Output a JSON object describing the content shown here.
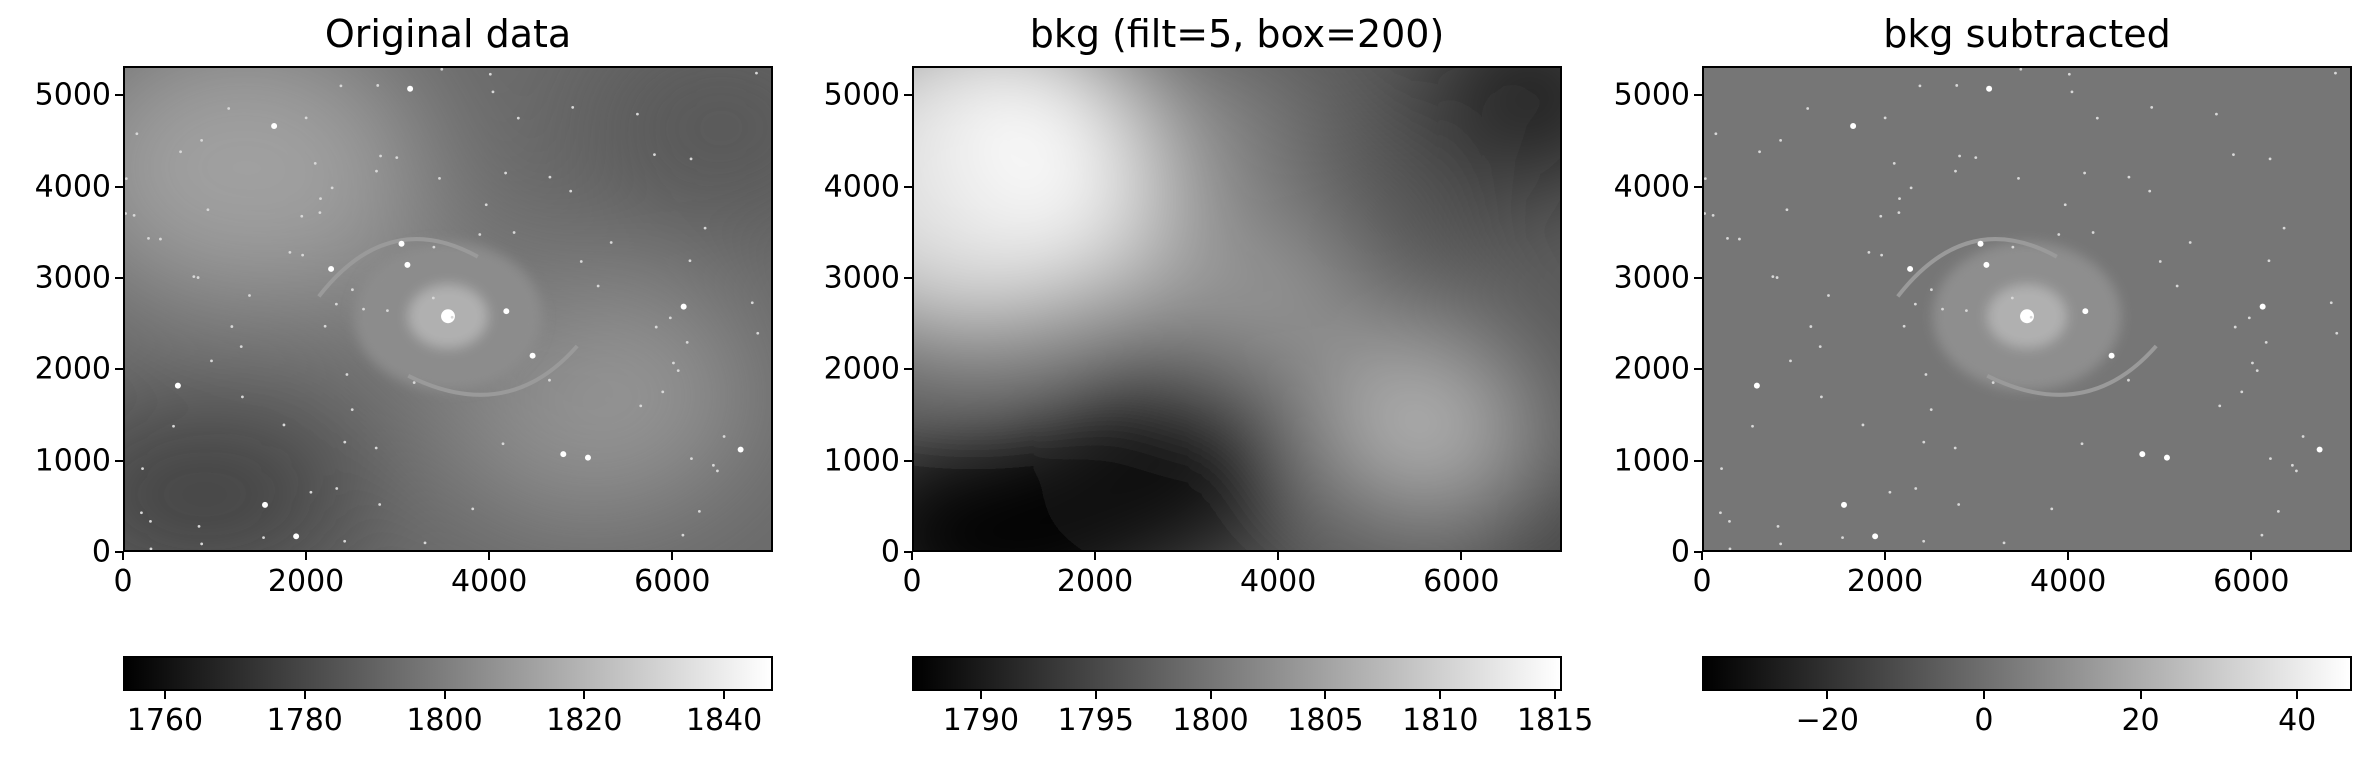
{
  "chart_data": [
    {
      "type": "heatmap",
      "title": "Original data",
      "xlim": [
        0,
        7100
      ],
      "ylim": [
        0,
        5320
      ],
      "x_ticks": [
        "0",
        "2000",
        "4000",
        "6000"
      ],
      "x_tick_values": [
        0,
        2000,
        4000,
        6000
      ],
      "y_ticks": [
        "0",
        "1000",
        "2000",
        "3000",
        "4000",
        "5000"
      ],
      "y_tick_values": [
        0,
        1000,
        2000,
        3000,
        4000,
        5000
      ],
      "colormap": "gray",
      "colorbar": {
        "range": [
          1754,
          1847
        ],
        "ticks": [
          "1760",
          "1780",
          "1800",
          "1820",
          "1840"
        ],
        "tick_values": [
          1760,
          1780,
          1800,
          1820,
          1840
        ]
      }
    },
    {
      "type": "heatmap",
      "title": "bkg (filt=5, box=200)",
      "xlim": [
        0,
        7100
      ],
      "ylim": [
        0,
        5320
      ],
      "x_ticks": [
        "0",
        "2000",
        "4000",
        "6000"
      ],
      "x_tick_values": [
        0,
        2000,
        4000,
        6000
      ],
      "y_ticks": [
        "0",
        "1000",
        "2000",
        "3000",
        "4000",
        "5000"
      ],
      "y_tick_values": [
        0,
        1000,
        2000,
        3000,
        4000,
        5000
      ],
      "colormap": "gray",
      "colorbar": {
        "range": [
          1787,
          1815.3
        ],
        "ticks": [
          "1790",
          "1795",
          "1800",
          "1805",
          "1810",
          "1815"
        ],
        "tick_values": [
          1790,
          1795,
          1800,
          1805,
          1810,
          1815
        ]
      }
    },
    {
      "type": "heatmap",
      "title": "bkg subtracted",
      "xlim": [
        0,
        7100
      ],
      "ylim": [
        0,
        5320
      ],
      "x_ticks": [
        "0",
        "2000",
        "4000",
        "6000"
      ],
      "x_tick_values": [
        0,
        2000,
        4000,
        6000
      ],
      "y_ticks": [
        "0",
        "1000",
        "2000",
        "3000",
        "4000",
        "5000"
      ],
      "y_tick_values": [
        0,
        1000,
        2000,
        3000,
        4000,
        5000
      ],
      "colormap": "gray",
      "colorbar": {
        "range": [
          -36,
          47
        ],
        "ticks": [
          "−20",
          "0",
          "20",
          "40"
        ],
        "tick_values": [
          -20,
          0,
          20,
          40
        ]
      }
    }
  ]
}
